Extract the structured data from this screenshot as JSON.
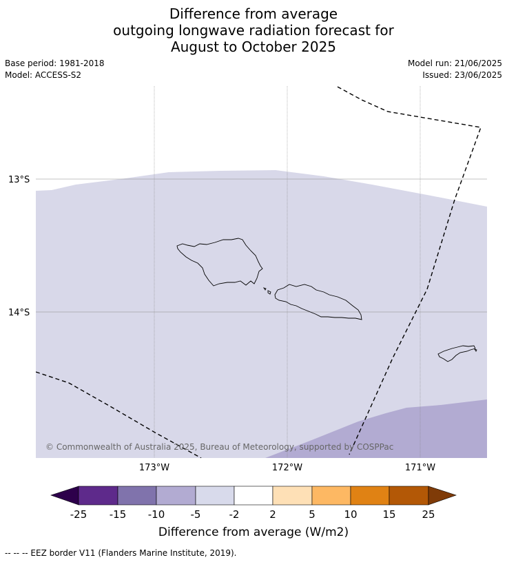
{
  "title": {
    "line1": "Difference from average",
    "line2": "outgoing longwave radiation forecast for",
    "line3": "August to October 2025"
  },
  "meta": {
    "base_period": "Base period: 1981-2018",
    "model": "Model: ACCESS-S2",
    "model_run": "Model run: 21/06/2025",
    "issued": "Issued: 23/06/2025"
  },
  "map": {
    "lat_labels": [
      "13°S",
      "14°S"
    ],
    "lon_labels": [
      "173°W",
      "172°W",
      "171°W"
    ],
    "credit": "© Commonwealth of Australia 2025, Bureau of Meteorology, supported by COSPPac",
    "colors": {
      "neutral_fill": "#d8d8e9",
      "negative_fill": "#b2abd2"
    }
  },
  "colorbar": {
    "labels": [
      "-25",
      "-15",
      "-10",
      "-5",
      "-2",
      "2",
      "5",
      "10",
      "15",
      "25"
    ],
    "colors": [
      "#2d004b",
      "#5e2a8b",
      "#8073ac",
      "#b2abd2",
      "#d8daeb",
      "#ffffff",
      "#fee0b6",
      "#fdb863",
      "#e08214",
      "#b35806",
      "#7f3b08"
    ],
    "title": "Difference from average (W/m2)"
  },
  "footnote": "-- -- -- EEZ border V11 (Flanders Marine Institute, 2019)."
}
